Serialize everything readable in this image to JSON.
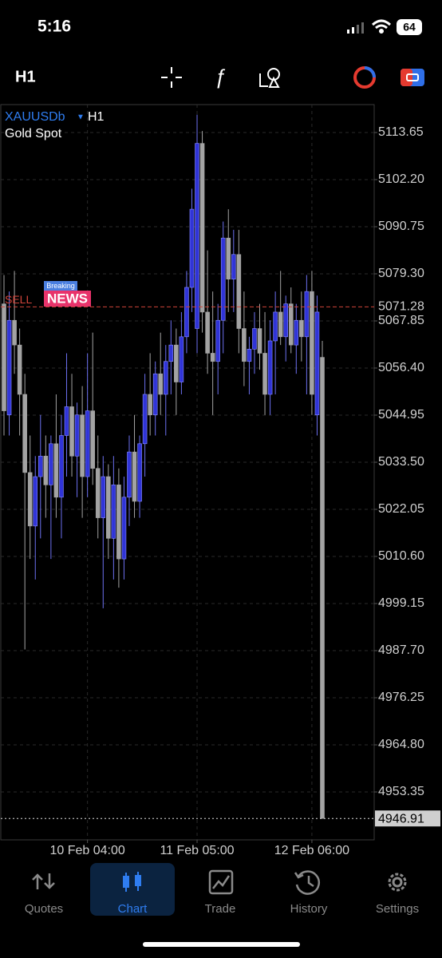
{
  "status": {
    "time": "5:16",
    "battery": "64"
  },
  "toolbar": {
    "timeframe": "H1"
  },
  "news": {
    "badge_top": "Breaking",
    "badge_main": "NEWS"
  },
  "tabs": [
    "Quotes",
    "Chart",
    "Trade",
    "History",
    "Settings"
  ],
  "chart_data": {
    "type": "candlestick",
    "symbol": "XAUUSDb",
    "timeframe": "H1",
    "description": "Gold Spot",
    "sell_label": "SELL",
    "sell_price": 5071.28,
    "current_price": 4946.91,
    "bull_color": "#3034d8",
    "bear_color": "#a3a3a3",
    "grid": true,
    "ylim": [
      4941.71,
      5120.44
    ],
    "yticks": [
      5113.65,
      {
        "value": 5102.2,
        "label": "5102.20"
      },
      5090.75,
      {
        "value": 5079.3,
        "label": "5079.30"
      },
      5067.85,
      {
        "value": 5056.4,
        "label": "5056.40"
      },
      5044.95,
      {
        "value": 5033.5,
        "label": "5033.50"
      },
      5022.05,
      {
        "value": 5010.6,
        "label": "5010.60"
      },
      4999.15,
      {
        "value": 4987.7,
        "label": "4987.70"
      },
      4976.25,
      {
        "value": 4964.8,
        "label": "4964.80"
      },
      4953.35
    ],
    "categories": [
      null,
      null,
      null,
      null,
      null,
      null,
      null,
      null,
      null,
      null,
      null,
      null,
      null,
      null,
      null,
      null,
      "10 Feb 04:00",
      null,
      null,
      null,
      null,
      null,
      null,
      null,
      null,
      null,
      null,
      null,
      null,
      null,
      null,
      null,
      null,
      null,
      null,
      null,
      null,
      "11 Feb 05:00",
      null,
      null,
      null,
      null,
      null,
      null,
      null,
      null,
      null,
      null,
      null,
      null,
      null,
      null,
      null,
      null,
      null,
      null,
      null,
      null,
      null,
      "12 Feb 06:00",
      null,
      null
    ],
    "open": [
      5072,
      5045,
      5068,
      5062,
      5050,
      5031,
      5018,
      5030,
      5035,
      5028,
      5038,
      5025,
      5040,
      5047,
      5035,
      5045,
      5030,
      5046,
      5032,
      5020,
      5030,
      5015,
      5028,
      5010,
      5025,
      5036,
      5024,
      5038,
      5050,
      5045,
      5055,
      5050,
      5058,
      5062,
      5053,
      5064,
      5076,
      5066,
      5111,
      5070,
      5060,
      5058,
      5068,
      5088,
      5078,
      5084,
      5066,
      5058,
      5061,
      5066,
      5060,
      5050,
      5063,
      5070,
      5064,
      5072,
      5062,
      5068,
      5064,
      5075,
      5045,
      5059
    ],
    "high": [
      5079,
      5075,
      5080,
      5066,
      5055,
      5040,
      5035,
      5045,
      5040,
      5040,
      5050,
      5045,
      5060,
      5055,
      5048,
      5052,
      5060,
      5065,
      5040,
      5035,
      5033,
      5035,
      5032,
      5030,
      5040,
      5045,
      5040,
      5055,
      5060,
      5058,
      5065,
      5062,
      5068,
      5066,
      5070,
      5080,
      5100,
      5118,
      5114,
      5085,
      5075,
      5072,
      5092,
      5095,
      5090,
      5090,
      5075,
      5064,
      5070,
      5072,
      5070,
      5068,
      5075,
      5080,
      5074,
      5076,
      5072,
      5075,
      5079,
      5080,
      5074,
      5063
    ],
    "low": [
      5040,
      5040,
      5055,
      5040,
      4988,
      5010,
      5005,
      5015,
      5020,
      5010,
      5020,
      5015,
      5030,
      5030,
      5025,
      5020,
      5025,
      5028,
      5015,
      4998,
      5010,
      5005,
      5003,
      5005,
      5018,
      5020,
      5020,
      5030,
      5040,
      5040,
      5045,
      5040,
      5050,
      5045,
      5050,
      5060,
      5070,
      5060,
      5065,
      5055,
      5045,
      5050,
      5060,
      5070,
      5070,
      5060,
      5052,
      5050,
      5055,
      5056,
      5045,
      5045,
      5050,
      5062,
      5058,
      5060,
      5055,
      5058,
      5050,
      5045,
      5040,
      4946.91
    ],
    "close": [
      5046,
      5068,
      5062,
      5050,
      5031,
      5018,
      5030,
      5035,
      5028,
      5038,
      5025,
      5040,
      5047,
      5035,
      5045,
      5030,
      5046,
      5032,
      5020,
      5030,
      5015,
      5028,
      5010,
      5025,
      5036,
      5024,
      5038,
      5050,
      5045,
      5055,
      5050,
      5058,
      5062,
      5053,
      5064,
      5076,
      5095,
      5111,
      5070,
      5060,
      5058,
      5068,
      5088,
      5078,
      5084,
      5066,
      5058,
      5061,
      5066,
      5060,
      5050,
      5063,
      5070,
      5064,
      5072,
      5062,
      5068,
      5064,
      5075,
      5050,
      5070,
      4946.91
    ]
  }
}
